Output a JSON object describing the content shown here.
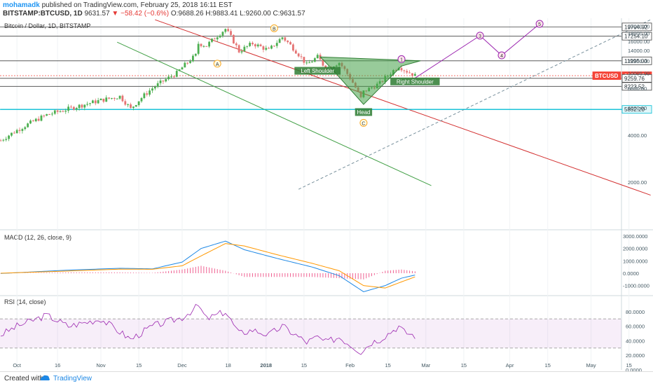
{
  "header": {
    "author": "mohamadk",
    "published": "published on TradingView.com, February 25, 2018 16:11 EST",
    "symbol": "BITSTAMP:BTCUSD, 1D",
    "last": "9631.57",
    "change": "▼ −58.42 (−0.6%)",
    "ohlc": "O:9688.26 H:9883.41 L:9260.00 C:9631.57"
  },
  "pane_labels": {
    "main": "Bitcoin / Dollar, 1D, BITSTAMP",
    "macd": "MACD (12, 26, close, 9)",
    "rsi": "RSI (14, close)"
  },
  "footer": {
    "created": "Created with",
    "brand": "TradingView"
  },
  "colors": {
    "up": "#4caf50",
    "down": "#e57373",
    "resistance": "#d32f2f",
    "support": "#43a047",
    "projection": "#9c27b0",
    "macd": "#1e88e5",
    "signal": "#ff9800",
    "hist": "#e91e63",
    "rsi": "#9c27b0",
    "cyan_line": "#00bcd4",
    "price_tag": "#f44336"
  },
  "chart_data": [
    {
      "type": "candlestick",
      "title": "Bitcoin / Dollar, 1D, BITSTAMP",
      "x_ticks": [
        "Oct",
        "16",
        "Nov",
        "15",
        "Dec",
        "18",
        "2018",
        "15",
        "Feb",
        "15",
        "Mar",
        "15",
        "Apr",
        "15",
        "May",
        "15"
      ],
      "y_ticks": [
        2000,
        4000,
        6000,
        8000,
        10000,
        12000,
        14000,
        16000,
        18000,
        20000,
        22000
      ],
      "y_tick_labels": [
        "2000.00",
        "4000.00",
        "6000.00",
        "8000.00",
        "10000.00",
        "12000.00",
        "14000.00",
        "16000.00",
        "18000.00",
        "20000.00",
        "22000.00"
      ],
      "ylim": [
        1000,
        22500
      ],
      "scale": "log",
      "close_path_anchors": [
        [
          "2017-09-25",
          3700
        ],
        [
          "2017-10-01",
          4300
        ],
        [
          "2017-10-12",
          5400
        ],
        [
          "2017-10-20",
          5900
        ],
        [
          "2017-11-01",
          6700
        ],
        [
          "2017-11-08",
          7100
        ],
        [
          "2017-11-12",
          5900
        ],
        [
          "2017-11-20",
          8000
        ],
        [
          "2017-11-29",
          10000
        ],
        [
          "2017-12-06",
          13000
        ],
        [
          "2017-12-07",
          15500
        ],
        [
          "2017-12-10",
          15000
        ],
        [
          "2017-12-17",
          19200
        ],
        [
          "2017-12-22",
          13800
        ],
        [
          "2017-12-27",
          15500
        ],
        [
          "2018-01-02",
          14000
        ],
        [
          "2018-01-07",
          17000
        ],
        [
          "2018-01-16",
          11300
        ],
        [
          "2018-01-20",
          12700
        ],
        [
          "2018-01-23",
          10700
        ],
        [
          "2018-01-28",
          11700
        ],
        [
          "2018-02-05",
          6900
        ],
        [
          "2018-02-06",
          7600
        ],
        [
          "2018-02-12",
          8600
        ],
        [
          "2018-02-19",
          11100
        ],
        [
          "2018-02-21",
          10500
        ],
        [
          "2018-02-25",
          9630
        ]
      ],
      "price_labels": [
        {
          "text": "19794.92",
          "value": 19794.92
        },
        {
          "text": "17254.10",
          "value": 17254.1
        },
        {
          "text": "11995.00",
          "value": 11995
        },
        {
          "text": "BTCUSD",
          "value": 9631.57,
          "highlight": true
        },
        {
          "text": "9631.57",
          "value": 9631.57,
          "highlight": true
        },
        {
          "text": "9259.76",
          "value": 9259.76
        },
        {
          "text": "8223.52",
          "value": 8223.52
        },
        {
          "text": "5852.20",
          "value": 5852.2,
          "cyan": true
        }
      ],
      "horizontal_levels": [
        19794.92,
        17254.1,
        11995,
        9631.57,
        9259.76,
        8223.52,
        5852.2
      ],
      "pattern_labels": [
        "Left Shoulder",
        "Head",
        "Right Shoulder"
      ],
      "wave_labels": [
        "A",
        "B",
        "C",
        "1",
        "3",
        "4",
        "5"
      ]
    },
    {
      "type": "line",
      "title": "MACD (12, 26, close, 9)",
      "series": [
        {
          "name": "MACD"
        },
        {
          "name": "Signal"
        },
        {
          "name": "Histogram"
        }
      ],
      "y_ticks": [
        -1000,
        0,
        1000,
        2000,
        3000
      ],
      "y_tick_labels": [
        "-1000.0000",
        "0.0000",
        "1000.0000",
        "2000.0000",
        "3000.0000"
      ],
      "ylim": [
        -1700,
        3400
      ],
      "macd_anchors": [
        [
          "2017-09-25",
          -20
        ],
        [
          "2017-10-20",
          250
        ],
        [
          "2017-11-08",
          400
        ],
        [
          "2017-11-20",
          350
        ],
        [
          "2017-12-01",
          900
        ],
        [
          "2017-12-08",
          2000
        ],
        [
          "2017-12-17",
          2600
        ],
        [
          "2017-12-24",
          1900
        ],
        [
          "2018-01-05",
          1200
        ],
        [
          "2018-01-18",
          500
        ],
        [
          "2018-01-28",
          -200
        ],
        [
          "2018-02-06",
          -1500
        ],
        [
          "2018-02-14",
          -1000
        ],
        [
          "2018-02-20",
          -400
        ],
        [
          "2018-02-25",
          -150
        ]
      ],
      "signal_anchors": [
        [
          "2017-09-25",
          0
        ],
        [
          "2017-10-20",
          180
        ],
        [
          "2017-11-08",
          330
        ],
        [
          "2017-11-20",
          320
        ],
        [
          "2017-12-01",
          600
        ],
        [
          "2017-12-08",
          1400
        ],
        [
          "2017-12-17",
          2400
        ],
        [
          "2017-12-24",
          2200
        ],
        [
          "2018-01-05",
          1500
        ],
        [
          "2018-01-18",
          800
        ],
        [
          "2018-01-28",
          200
        ],
        [
          "2018-02-06",
          -1000
        ],
        [
          "2018-02-14",
          -1200
        ],
        [
          "2018-02-20",
          -700
        ],
        [
          "2018-02-25",
          -300
        ]
      ]
    },
    {
      "type": "line",
      "title": "RSI (14, close)",
      "series": [
        {
          "name": "RSI"
        }
      ],
      "y_ticks": [
        0,
        20,
        40,
        60,
        80
      ],
      "y_tick_labels": [
        "0.0000",
        "20.0000",
        "40.0000",
        "60.0000",
        "80.0000"
      ],
      "ylim": [
        0,
        100
      ],
      "band": [
        30,
        70
      ],
      "rsi_anchors": [
        [
          "2017-09-25",
          48
        ],
        [
          "2017-10-01",
          60
        ],
        [
          "2017-10-12",
          75
        ],
        [
          "2017-10-20",
          60
        ],
        [
          "2017-11-01",
          70
        ],
        [
          "2017-11-12",
          42
        ],
        [
          "2017-11-20",
          60
        ],
        [
          "2017-12-01",
          72
        ],
        [
          "2017-12-07",
          88
        ],
        [
          "2017-12-10",
          70
        ],
        [
          "2017-12-17",
          80
        ],
        [
          "2017-12-22",
          50
        ],
        [
          "2017-12-27",
          55
        ],
        [
          "2018-01-02",
          48
        ],
        [
          "2018-01-07",
          60
        ],
        [
          "2018-01-16",
          38
        ],
        [
          "2018-01-20",
          45
        ],
        [
          "2018-01-23",
          38
        ],
        [
          "2018-01-28",
          45
        ],
        [
          "2018-02-05",
          25
        ],
        [
          "2018-02-09",
          38
        ],
        [
          "2018-02-12",
          42
        ],
        [
          "2018-02-19",
          60
        ],
        [
          "2018-02-21",
          52
        ],
        [
          "2018-02-25",
          47
        ]
      ]
    }
  ]
}
